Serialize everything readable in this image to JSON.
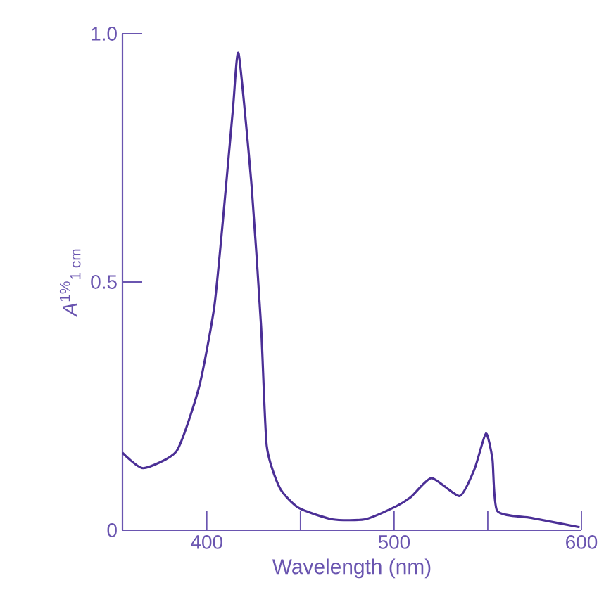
{
  "chart_data": {
    "type": "line",
    "xlabel": "Wavelength (nm)",
    "ylabel": "*A*$^{1%}$$_{1 cm}$",
    "xlim": [
      355,
      600
    ],
    "ylim": [
      0,
      1
    ],
    "xticks": [
      400,
      {
        "value": 450,
        "label": null
      },
      500,
      {
        "value": 550,
        "label": null
      },
      600
    ],
    "yticks": [
      {
        "value": 0,
        "label": "0"
      },
      {
        "value": 0.5,
        "label": "0.5"
      },
      {
        "value": 1,
        "label": "1.0"
      }
    ],
    "grid": false,
    "marker": "none",
    "line_style": "solid",
    "series": [
      {
        "color": "#4b2f96",
        "x": [
          355,
          366,
          384,
          396,
          404,
          409,
          414,
          417,
          424,
          429,
          432,
          439,
          449,
          467,
          484.5,
          501,
          509,
          520,
          535,
          543,
          549,
          552.5,
          555,
          573,
          599
        ],
        "values": [
          0.156,
          0.125,
          0.16,
          0.29,
          0.45,
          0.64,
          0.85,
          0.96,
          0.69,
          0.41,
          0.17,
          0.085,
          0.045,
          0.022,
          0.022,
          0.048,
          0.067,
          0.105,
          0.069,
          0.124,
          0.195,
          0.143,
          0.039,
          0.025,
          0.006
        ]
      }
    ]
  }
}
